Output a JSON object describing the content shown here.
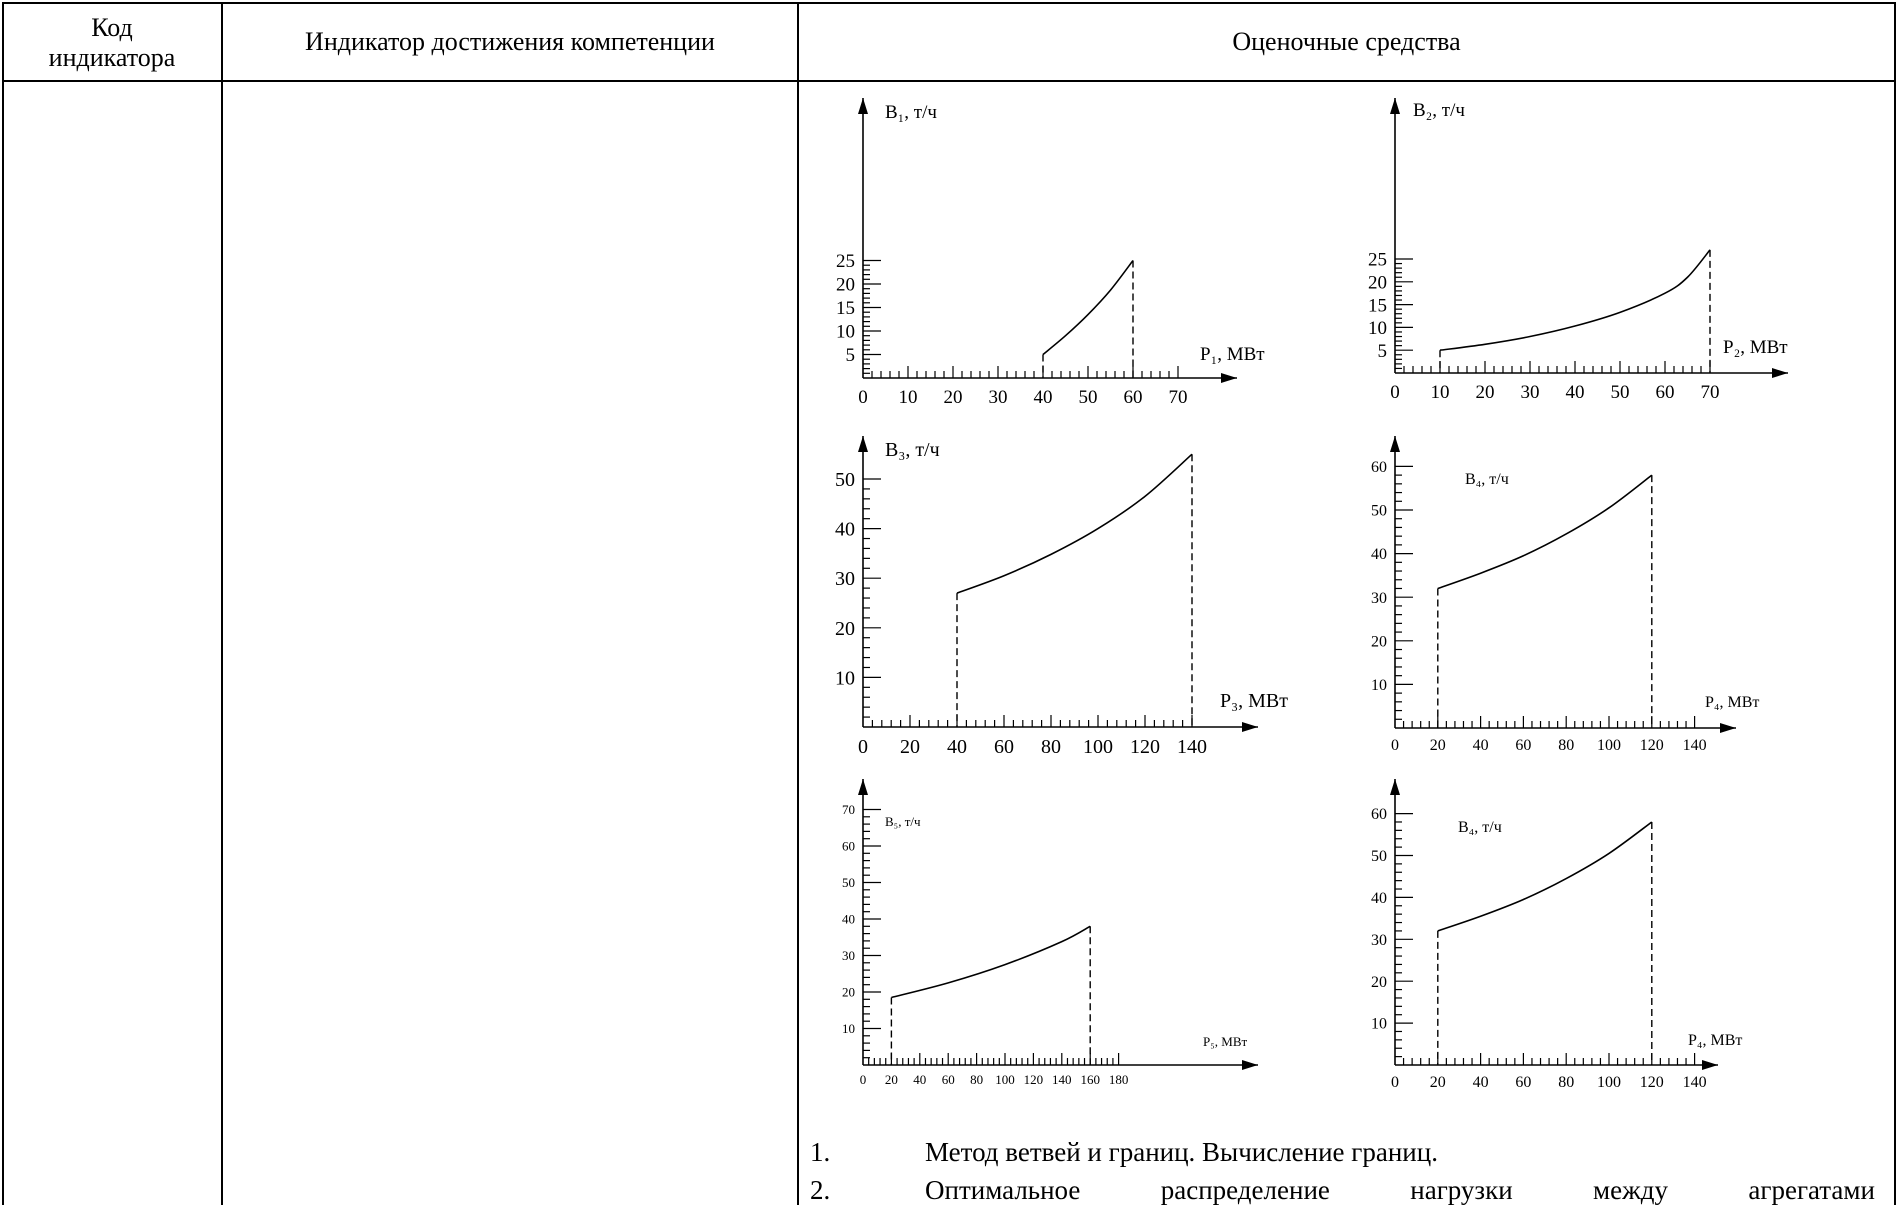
{
  "header": {
    "col1": "Код индикатора",
    "col2": "Индикатор достижения компетенции",
    "col3": "Оценочные средства"
  },
  "chart_data": [
    {
      "type": "line",
      "ylabel": "B₁, т/ч",
      "xlabel": "P₁, МВт",
      "x_ticks": [
        0,
        10,
        20,
        30,
        40,
        50,
        60,
        70
      ],
      "y_ticks": [
        5,
        10,
        15,
        20,
        25
      ],
      "xlim": [
        0,
        80
      ],
      "ylim": [
        0,
        28
      ],
      "series": [
        {
          "x": [
            40,
            45,
            50,
            55,
            60
          ],
          "y": [
            5,
            9,
            13.5,
            18.7,
            25
          ]
        }
      ],
      "dashed_x": [
        40,
        60
      ]
    },
    {
      "type": "line",
      "ylabel": "B₂, т/ч",
      "xlabel": "P₂, МВт",
      "x_ticks": [
        0,
        10,
        20,
        30,
        40,
        50,
        60,
        70
      ],
      "y_ticks": [
        5,
        10,
        15,
        20,
        25
      ],
      "xlim": [
        0,
        75
      ],
      "ylim": [
        0,
        28
      ],
      "series": [
        {
          "x": [
            10,
            20,
            30,
            40,
            50,
            60,
            65,
            70
          ],
          "y": [
            5,
            6.3,
            8,
            10.3,
            13.3,
            17.5,
            21,
            27
          ]
        }
      ],
      "dashed_x": [
        10,
        70
      ]
    },
    {
      "type": "line",
      "ylabel": "B₃, т/ч",
      "xlabel": "P₃, МВт",
      "x_ticks": [
        0,
        20,
        40,
        60,
        80,
        100,
        120,
        140
      ],
      "y_ticks": [
        10,
        20,
        30,
        40,
        50
      ],
      "xlim": [
        0,
        150
      ],
      "ylim": [
        0,
        55
      ],
      "series": [
        {
          "x": [
            40,
            60,
            80,
            100,
            120,
            140
          ],
          "y": [
            27,
            30.5,
            34.8,
            40,
            46.5,
            55
          ]
        }
      ],
      "dashed_x": [
        40,
        140
      ]
    },
    {
      "type": "line",
      "ylabel": "B₄, т/ч",
      "xlabel": "P₄, МВт",
      "x_ticks": [
        0,
        20,
        40,
        60,
        80,
        100,
        120,
        140
      ],
      "y_ticks": [
        10,
        20,
        30,
        40,
        50,
        60
      ],
      "xlim": [
        0,
        150
      ],
      "ylim": [
        0,
        65
      ],
      "series": [
        {
          "x": [
            20,
            40,
            60,
            80,
            100,
            120
          ],
          "y": [
            32,
            35.5,
            39.5,
            44.5,
            50.5,
            58
          ]
        }
      ],
      "dashed_x": [
        20,
        120
      ]
    },
    {
      "type": "line",
      "ylabel": "B₅, т/ч",
      "xlabel": "P₅, МВт",
      "x_ticks": [
        0,
        20,
        40,
        60,
        80,
        100,
        120,
        140,
        160,
        180
      ],
      "y_ticks": [
        10,
        20,
        30,
        40,
        50,
        60,
        70
      ],
      "xlim": [
        0,
        190
      ],
      "ylim": [
        0,
        75
      ],
      "series": [
        {
          "x": [
            20,
            60,
            100,
            140,
            160
          ],
          "y": [
            18.5,
            22.5,
            27.5,
            33.8,
            38
          ]
        }
      ],
      "dashed_x": [
        20,
        160
      ]
    },
    {
      "type": "line",
      "ylabel": "B₄, т/ч",
      "xlabel": "P₄, МВт",
      "x_ticks": [
        0,
        20,
        40,
        60,
        80,
        100,
        120,
        140
      ],
      "y_ticks": [
        10,
        20,
        30,
        40,
        50,
        60
      ],
      "xlim": [
        0,
        150
      ],
      "ylim": [
        0,
        65
      ],
      "series": [
        {
          "x": [
            20,
            40,
            60,
            80,
            100,
            120
          ],
          "y": [
            32,
            35.5,
            39.5,
            44.5,
            50.5,
            58
          ]
        }
      ],
      "dashed_x": [
        20,
        120
      ]
    }
  ],
  "list": [
    {
      "num": "1.",
      "text": "Метод ветвей и границ. Вычисление границ."
    },
    {
      "num": "2.",
      "text": "Оптимальное распределение нагрузки между агрегатами"
    }
  ]
}
